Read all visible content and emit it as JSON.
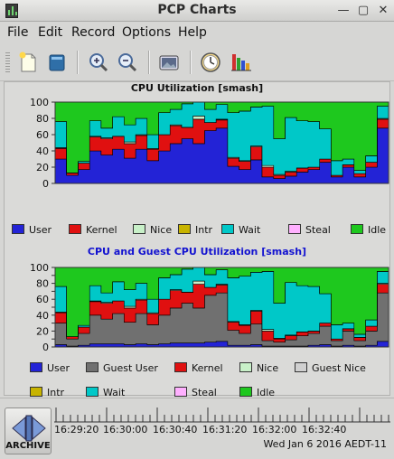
{
  "window": {
    "title": "PCP Charts",
    "buttons": [
      "minimize-button",
      "maximize-button",
      "close-button"
    ]
  },
  "menu": [
    "File",
    "Edit",
    "Record",
    "Options",
    "Help"
  ],
  "toolbar": {
    "icons": [
      "new-chart-icon",
      "open-view-icon",
      "zoom-in-icon",
      "zoom-out-icon",
      "export-image-icon",
      "time-control-icon",
      "chart-values-icon"
    ]
  },
  "chart_data": [
    {
      "type": "area",
      "title": "CPU Utilization [smash]",
      "ylim": [
        0,
        100
      ],
      "yticks": [
        "0",
        "20",
        "40",
        "60",
        "80",
        "100"
      ],
      "grid": true,
      "legend_position": "bottom",
      "x_count": 34,
      "series": [
        {
          "name": "User",
          "color": "#2323d6",
          "values": [
            30,
            10,
            17,
            40,
            35,
            42,
            31,
            42,
            28,
            40,
            49,
            55,
            49,
            65,
            68,
            21,
            17,
            29,
            8,
            6,
            9,
            14,
            17,
            26,
            8,
            20,
            8,
            20,
            68
          ]
        },
        {
          "name": "Kernel",
          "color": "#e01010",
          "values": [
            13,
            3,
            8,
            17,
            20,
            16,
            18,
            17,
            14,
            20,
            22,
            14,
            30,
            10,
            10,
            10,
            10,
            16,
            12,
            4,
            5,
            5,
            3,
            4,
            2,
            3,
            4,
            6,
            11
          ]
        },
        {
          "name": "Nice",
          "color": "#c8f0c8",
          "values": [
            1,
            0,
            0,
            1,
            1,
            0,
            2,
            1,
            1,
            0,
            1,
            0,
            4,
            0,
            1,
            1,
            1,
            1,
            2,
            1,
            1,
            0,
            0,
            0,
            0,
            0,
            0,
            0,
            1
          ]
        },
        {
          "name": "Intr",
          "color": "#c8b400",
          "values": [
            0,
            0,
            0,
            0,
            0,
            0,
            0,
            0,
            0,
            0,
            0,
            0,
            0,
            0,
            0,
            0,
            0,
            0,
            0,
            0,
            0,
            0,
            0,
            0,
            0,
            0,
            0,
            0,
            0
          ]
        },
        {
          "name": "Wait",
          "color": "#00c8c8",
          "values": [
            32,
            0,
            2,
            19,
            12,
            24,
            21,
            20,
            17,
            27,
            19,
            29,
            17,
            16,
            18,
            55,
            61,
            48,
            73,
            44,
            66,
            58,
            56,
            37,
            18,
            7,
            4,
            8,
            15
          ]
        },
        {
          "name": "Steal",
          "color": "#ffb0ff",
          "values": [
            0,
            0,
            0,
            0,
            0,
            0,
            0,
            0,
            0,
            0,
            0,
            0,
            0,
            0,
            0,
            0,
            0,
            0,
            0,
            0,
            0,
            0,
            0,
            0,
            0,
            0,
            0,
            0,
            0
          ]
        },
        {
          "name": "Idle",
          "color": "#1ec81e",
          "values": [
            24,
            87,
            73,
            23,
            32,
            18,
            28,
            20,
            40,
            13,
            9,
            2,
            0,
            9,
            3,
            13,
            11,
            6,
            5,
            45,
            19,
            23,
            24,
            33,
            72,
            70,
            84,
            66,
            5
          ]
        }
      ]
    },
    {
      "type": "area",
      "title": "CPU and Guest CPU Utilization [smash]",
      "ylim": [
        0,
        100
      ],
      "yticks": [
        "0",
        "10",
        "20",
        "30",
        "40",
        "50",
        "60",
        "70",
        "80",
        "90",
        "100"
      ],
      "grid": true,
      "legend_position": "bottom",
      "series": [
        {
          "name": "User",
          "color": "#2323d6",
          "values": [
            3,
            1,
            2,
            4,
            4,
            4,
            3,
            4,
            3,
            4,
            5,
            5,
            5,
            6,
            7,
            2,
            2,
            3,
            1,
            1,
            1,
            1,
            2,
            3,
            1,
            2,
            1,
            2,
            7
          ]
        },
        {
          "name": "Guest User",
          "color": "#707070",
          "values": [
            27,
            9,
            15,
            36,
            31,
            38,
            28,
            38,
            25,
            36,
            44,
            50,
            44,
            59,
            61,
            19,
            15,
            26,
            7,
            5,
            8,
            13,
            15,
            23,
            7,
            18,
            7,
            18,
            61
          ]
        },
        {
          "name": "Kernel",
          "color": "#e01010",
          "values": [
            13,
            3,
            8,
            17,
            20,
            16,
            18,
            17,
            14,
            20,
            22,
            14,
            30,
            10,
            10,
            10,
            10,
            16,
            12,
            4,
            5,
            5,
            3,
            4,
            2,
            3,
            4,
            6,
            11
          ]
        },
        {
          "name": "Nice",
          "color": "#c8f0c8",
          "values": [
            1,
            0,
            0,
            1,
            1,
            0,
            2,
            1,
            1,
            0,
            1,
            0,
            4,
            0,
            1,
            1,
            1,
            1,
            2,
            1,
            1,
            0,
            0,
            0,
            0,
            0,
            0,
            0,
            1
          ]
        },
        {
          "name": "Guest Nice",
          "color": "#d0d0d0",
          "values": [
            0,
            0,
            0,
            0,
            0,
            0,
            0,
            0,
            0,
            0,
            0,
            0,
            0,
            0,
            0,
            0,
            0,
            0,
            0,
            0,
            0,
            0,
            0,
            0,
            0,
            0,
            0,
            0,
            0
          ]
        },
        {
          "name": "Intr",
          "color": "#c8b400",
          "values": [
            0,
            0,
            0,
            0,
            0,
            0,
            0,
            0,
            0,
            0,
            0,
            0,
            0,
            0,
            0,
            0,
            0,
            0,
            0,
            0,
            0,
            0,
            0,
            0,
            0,
            0,
            0,
            0,
            0
          ]
        },
        {
          "name": "Wait",
          "color": "#00c8c8",
          "values": [
            32,
            0,
            2,
            19,
            12,
            24,
            21,
            20,
            17,
            27,
            19,
            29,
            17,
            16,
            18,
            55,
            61,
            48,
            73,
            44,
            66,
            58,
            56,
            37,
            18,
            7,
            4,
            8,
            15
          ]
        },
        {
          "name": "Steal",
          "color": "#ffb0ff",
          "values": [
            0,
            0,
            0,
            0,
            0,
            0,
            0,
            0,
            0,
            0,
            0,
            0,
            0,
            0,
            0,
            0,
            0,
            0,
            0,
            0,
            0,
            0,
            0,
            0,
            0,
            0,
            0,
            0,
            0
          ]
        },
        {
          "name": "Idle",
          "color": "#1ec81e",
          "values": [
            24,
            87,
            73,
            23,
            32,
            18,
            28,
            20,
            40,
            13,
            9,
            2,
            0,
            9,
            3,
            13,
            11,
            6,
            5,
            45,
            19,
            23,
            24,
            33,
            72,
            70,
            84,
            66,
            5
          ]
        }
      ]
    }
  ],
  "timeaxis": {
    "labels": [
      "16:29:20",
      "16:30:00",
      "16:30:40",
      "16:31:20",
      "16:32:00",
      "16:32:40"
    ],
    "timestamp": "Wed Jan  6 2016 AEDT-11"
  },
  "archive": {
    "label": "ARCHIVE"
  }
}
